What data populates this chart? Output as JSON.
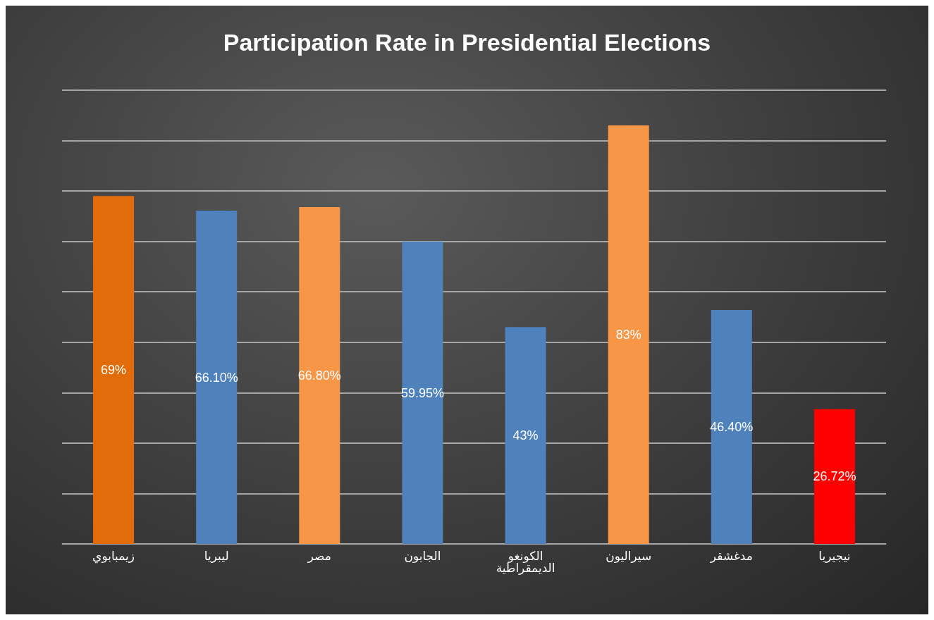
{
  "chart_data": {
    "type": "bar",
    "title": "Participation Rate in Presidential Elections",
    "categories": [
      "زيمبابوي",
      "ليبريا",
      "مصر",
      "الجابون",
      "الكونغو\nالديمقراطية",
      "سيراليون",
      "مدغشقر",
      "نيجيريا"
    ],
    "values": [
      69,
      66.1,
      66.8,
      59.95,
      43,
      83,
      46.4,
      26.72
    ],
    "value_labels": [
      "69%",
      "66.10%",
      "66.80%",
      "59.95%",
      "43%",
      "83%",
      "46.40%",
      "26.72%"
    ],
    "colors": [
      "#e36c0a",
      "#4f81bd",
      "#f79646",
      "#4f81bd",
      "#4f81bd",
      "#f79646",
      "#4f81bd",
      "#ff0000"
    ],
    "ylim": [
      0,
      90
    ],
    "yticks": [
      {
        "value": 0,
        "label": null
      },
      {
        "value": 10,
        "label": null
      },
      {
        "value": 20,
        "label": null
      },
      {
        "value": 30,
        "label": null
      },
      {
        "value": 40,
        "label": null
      },
      {
        "value": 50,
        "label": null
      },
      {
        "value": 60,
        "label": null
      },
      {
        "value": 70,
        "label": null
      },
      {
        "value": 80,
        "label": null
      },
      {
        "value": 90,
        "label": null
      }
    ],
    "grid": "y",
    "tick_labels": "x"
  }
}
